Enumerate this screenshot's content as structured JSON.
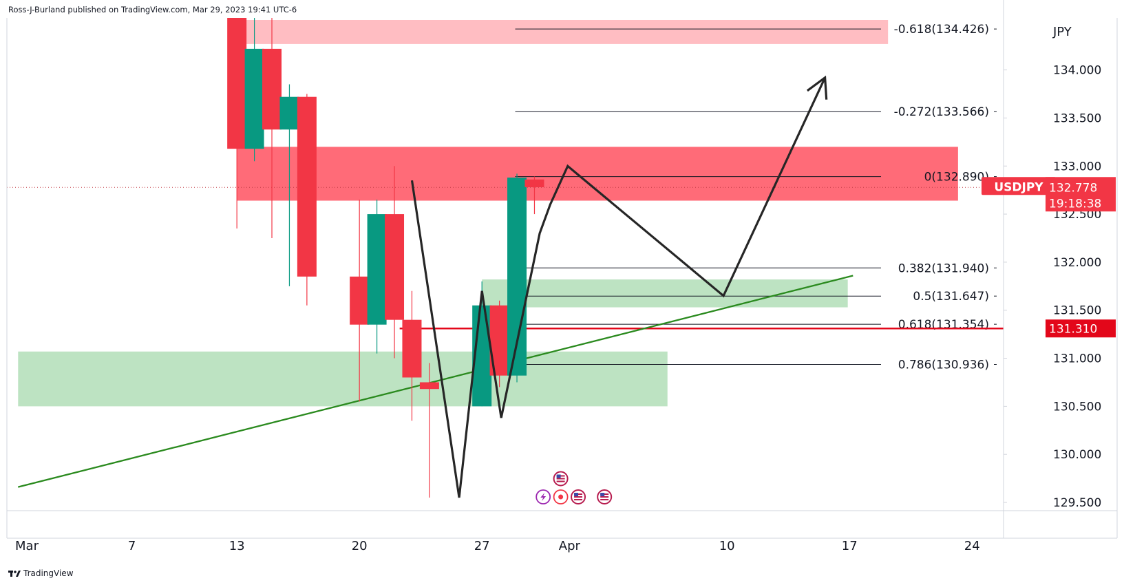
{
  "attribution": "Ross-J-Burland published on TradingView.com, Mar 29, 2023 19:41 UTC-6",
  "brand": "TradingView",
  "chart_data": {
    "type": "candlestick",
    "symbol": "USDJPY",
    "currency": "JPY",
    "y_ticks": [
      "134.000",
      "133.500",
      "133.000",
      "132.500",
      "132.000",
      "131.500",
      "131.000",
      "130.500",
      "130.000",
      "129.500"
    ],
    "y_tick_values": [
      134.0,
      133.5,
      133.0,
      132.5,
      132.0,
      131.5,
      131.0,
      130.5,
      130.0,
      129.5
    ],
    "ylim": [
      129.45,
      134.52
    ],
    "x_ticks": [
      {
        "label": "Mar",
        "day": 1
      },
      {
        "label": "7",
        "day": 7
      },
      {
        "label": "13",
        "day": 13
      },
      {
        "label": "20",
        "day": 20
      },
      {
        "label": "27",
        "day": 27
      },
      {
        "label": "Apr",
        "day": 32
      },
      {
        "label": "10",
        "day": 41
      },
      {
        "label": "17",
        "day": 48
      },
      {
        "label": "24",
        "day": 55
      }
    ],
    "candles": [
      {
        "day": 13,
        "open": 134.85,
        "high": 135.0,
        "low": 132.35,
        "close": 133.18
      },
      {
        "day": 14,
        "open": 133.18,
        "high": 135.0,
        "low": 133.05,
        "close": 134.22
      },
      {
        "day": 15,
        "open": 134.22,
        "high": 135.0,
        "low": 132.25,
        "close": 133.38
      },
      {
        "day": 16,
        "open": 133.38,
        "high": 133.85,
        "low": 131.75,
        "close": 133.72
      },
      {
        "day": 17,
        "open": 133.72,
        "high": 133.75,
        "low": 131.55,
        "close": 131.85
      },
      {
        "day": 20,
        "open": 131.85,
        "high": 132.65,
        "low": 130.55,
        "close": 131.35
      },
      {
        "day": 21,
        "open": 131.35,
        "high": 132.65,
        "low": 131.05,
        "close": 132.5
      },
      {
        "day": 22,
        "open": 132.5,
        "high": 133.0,
        "low": 131.0,
        "close": 131.4
      },
      {
        "day": 23,
        "open": 131.4,
        "high": 131.7,
        "low": 130.35,
        "close": 130.8
      },
      {
        "day": 24,
        "open": 130.75,
        "high": 130.95,
        "low": 129.55,
        "close": 130.68
      },
      {
        "day": 27,
        "open": 130.5,
        "high": 131.8,
        "low": 130.5,
        "close": 131.55
      },
      {
        "day": 28,
        "open": 131.55,
        "high": 131.6,
        "low": 130.7,
        "close": 130.82
      },
      {
        "day": 29,
        "open": 130.82,
        "high": 132.92,
        "low": 130.75,
        "close": 132.88
      },
      {
        "day": 30,
        "open": 132.86,
        "high": 132.89,
        "low": 132.5,
        "close": 132.78
      }
    ],
    "zones": [
      {
        "color": "#ffbdc2",
        "day_start": 12.8,
        "day_end": 50.2,
        "top": 134.52,
        "bottom": 134.27
      },
      {
        "color": "#ff6b78",
        "day_start": 13,
        "day_end": 54.2,
        "top": 133.2,
        "bottom": 132.64
      },
      {
        "color": "#bde3c2",
        "day_start": 27,
        "day_end": 47.9,
        "top": 131.82,
        "bottom": 131.53
      },
      {
        "color": "#bde3c2",
        "day_start": 0.5,
        "day_end": 37.6,
        "top": 131.07,
        "bottom": 130.5
      }
    ],
    "fib_levels": [
      {
        "label": "-0.618(134.426)",
        "value": 134.426
      },
      {
        "label": "-0.272(133.566)",
        "value": 133.566
      },
      {
        "label": "0(132.890)",
        "value": 132.89
      },
      {
        "label": "0.382(131.940)",
        "value": 131.94
      },
      {
        "label": "0.5(131.647)",
        "value": 131.647
      },
      {
        "label": "0.618(131.354)",
        "value": 131.354
      },
      {
        "label": "0.786(130.936)",
        "value": 130.936
      }
    ],
    "fib_line_day_start": 28.9,
    "fib_line_day_end": 49.8,
    "trendline": [
      {
        "day": 0.5,
        "value": 129.66
      },
      {
        "day": 48.2,
        "value": 131.86
      }
    ],
    "path_points": [
      {
        "day": 23,
        "value": 132.85
      },
      {
        "day": 25.7,
        "value": 129.55
      },
      {
        "day": 27,
        "value": 131.7
      },
      {
        "day": 28.1,
        "value": 130.38
      },
      {
        "day": 30.3,
        "value": 132.3
      },
      {
        "day": 30.9,
        "value": 132.6
      },
      {
        "day": 31.9,
        "value": 133.0
      },
      {
        "day": 40.8,
        "value": 131.65
      },
      {
        "day": 46.6,
        "value": 133.92
      }
    ],
    "current_price": {
      "label": "132.778",
      "value": 132.778,
      "countdown": "19:18:38",
      "symbol_label": "USDJPY"
    },
    "level_line": {
      "label": "131.310",
      "value": 131.31,
      "day_start": 22.3
    },
    "events": [
      {
        "day": 31.5,
        "value": 129.69,
        "kind": "us-flag"
      },
      {
        "day": 30.5,
        "value": 129.5,
        "kind": "lightning"
      },
      {
        "day": 31.5,
        "value": 129.5,
        "kind": "dot"
      },
      {
        "day": 32.5,
        "value": 129.5,
        "kind": "us-flag"
      },
      {
        "day": 34.0,
        "value": 129.5,
        "kind": "us-flag"
      }
    ],
    "colors": {
      "up": "#089981",
      "down": "#f23645",
      "fib": "#131722",
      "trend": "#2a8a1e",
      "path": "#262626",
      "price_tag": "#f23645",
      "level_tag": "#e3071a",
      "axis_text": "#131722"
    },
    "legend": "none",
    "grid": false
  }
}
